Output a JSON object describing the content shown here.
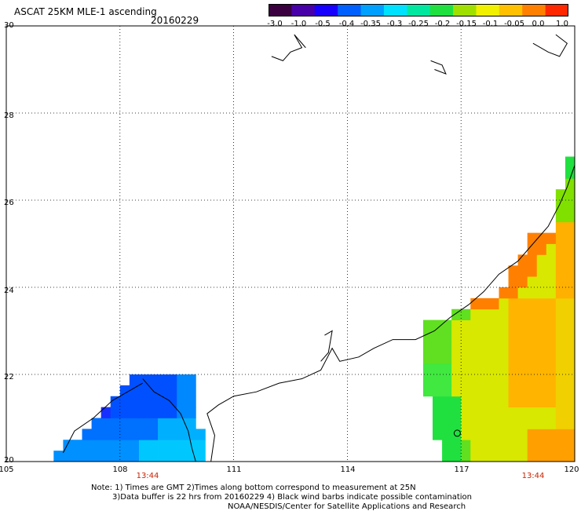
{
  "header": {
    "title": "ASCAT 25KM MLE-1 ascending",
    "date": "20160229"
  },
  "colorbar": {
    "tick_labels": [
      "-3.0",
      "-1.0",
      "-0.5",
      "-0.4",
      "-0.35",
      "-0.3",
      "-0.25",
      "-0.2",
      "-0.15",
      "-0.1",
      "-0.05",
      "0.0",
      "1.0"
    ],
    "colors": [
      "#3a0040",
      "#4800a8",
      "#1800ff",
      "#0060ff",
      "#00a0ff",
      "#00e0ff",
      "#00e8a0",
      "#20e040",
      "#a0e000",
      "#f0f000",
      "#ffc000",
      "#ff8000",
      "#ff2800"
    ]
  },
  "map": {
    "lat_labels": [
      "30",
      "28",
      "26",
      "24",
      "22",
      "20"
    ],
    "lon_labels": [
      "105",
      "108",
      "111",
      "114",
      "117",
      "120"
    ],
    "time_labels": [
      "13:44",
      "13:44"
    ],
    "lat_range": [
      20,
      30
    ],
    "lon_range": [
      105,
      120
    ],
    "grid": "dotted"
  },
  "notes": {
    "line1": "Note: 1) Times are GMT 2)Times along bottom correspond to measurement at 25N",
    "line2": "3)Data buffer is 22 hrs from 20160229 4) Black wind barbs indicate possible contamination",
    "line3": "NOAA/NESDIS/Center for Satellite Applications and Research"
  }
}
